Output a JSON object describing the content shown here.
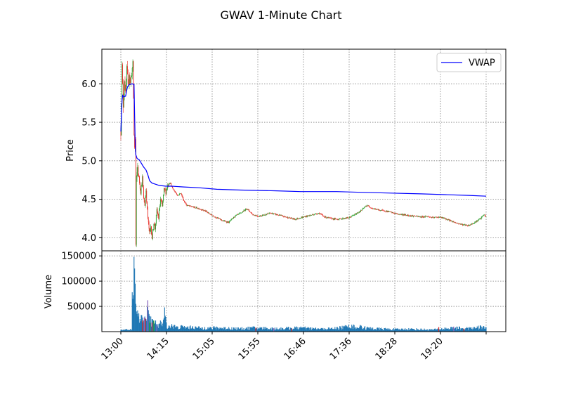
{
  "chart_data": {
    "title": "GWAV 1-Minute Chart",
    "type": "candlestick-with-volume",
    "grid": true,
    "legend_placement": "upper-right",
    "x_tick_labels": [
      "13:00",
      "14:15",
      "15:05",
      "15:55",
      "16:46",
      "17:36",
      "18:28",
      "19:20"
    ],
    "price_panel": {
      "ylabel": "Price",
      "ylim": [
        3.83,
        6.45
      ],
      "yticks": [
        4.0,
        4.5,
        5.0,
        5.5,
        6.0
      ],
      "ytick_labels": [
        "4.0",
        "4.5",
        "5.0",
        "5.5",
        "6.0"
      ],
      "vwap": {
        "name": "VWAP",
        "color": "#0000ff",
        "points": [
          [
            0,
            5.38
          ],
          [
            2,
            5.78
          ],
          [
            3,
            5.85
          ],
          [
            5,
            5.83
          ],
          [
            8,
            5.84
          ],
          [
            11,
            5.96
          ],
          [
            14,
            5.99
          ],
          [
            19,
            6.0
          ],
          [
            22,
            5.99
          ],
          [
            23,
            5.6
          ],
          [
            24,
            5.2
          ],
          [
            25,
            5.08
          ],
          [
            27,
            5.03
          ],
          [
            31,
            5.01
          ],
          [
            34,
            4.97
          ],
          [
            38,
            4.92
          ],
          [
            42,
            4.88
          ],
          [
            45,
            4.82
          ],
          [
            48,
            4.74
          ],
          [
            52,
            4.71
          ],
          [
            56,
            4.7
          ],
          [
            64,
            4.68
          ],
          [
            75,
            4.67
          ],
          [
            85,
            4.67
          ],
          [
            105,
            4.66
          ],
          [
            130,
            4.65
          ],
          [
            160,
            4.63
          ],
          [
            200,
            4.62
          ],
          [
            260,
            4.61
          ],
          [
            300,
            4.6
          ],
          [
            360,
            4.6
          ],
          [
            400,
            4.59
          ],
          [
            450,
            4.58
          ],
          [
            500,
            4.57
          ],
          [
            540,
            4.56
          ],
          [
            580,
            4.55
          ],
          [
            609,
            4.54
          ]
        ]
      },
      "price_path": [
        [
          0,
          5.38
        ],
        [
          2,
          6.22
        ],
        [
          4,
          5.72
        ],
        [
          6,
          6.06
        ],
        [
          8,
          5.85
        ],
        [
          10,
          6.18
        ],
        [
          12,
          5.96
        ],
        [
          14,
          6.14
        ],
        [
          16,
          6.0
        ],
        [
          18,
          6.15
        ],
        [
          20,
          6.24
        ],
        [
          21,
          5.82
        ],
        [
          22,
          5.33
        ],
        [
          23,
          5.18
        ],
        [
          24,
          5.27
        ],
        [
          25,
          3.9
        ],
        [
          26,
          4.75
        ],
        [
          28,
          4.92
        ],
        [
          30,
          4.78
        ],
        [
          33,
          4.6
        ],
        [
          36,
          4.78
        ],
        [
          38,
          4.5
        ],
        [
          40,
          4.43
        ],
        [
          42,
          4.62
        ],
        [
          45,
          4.25
        ],
        [
          48,
          4.05
        ],
        [
          50,
          4.15
        ],
        [
          52,
          4.0
        ],
        [
          55,
          4.2
        ],
        [
          57,
          4.12
        ],
        [
          60,
          4.35
        ],
        [
          63,
          4.25
        ],
        [
          66,
          4.5
        ],
        [
          69,
          4.4
        ],
        [
          72,
          4.62
        ],
        [
          75,
          4.6
        ],
        [
          78,
          4.68
        ],
        [
          82,
          4.72
        ],
        [
          86,
          4.64
        ],
        [
          90,
          4.6
        ],
        [
          95,
          4.55
        ],
        [
          100,
          4.58
        ],
        [
          105,
          4.48
        ],
        [
          110,
          4.42
        ],
        [
          120,
          4.4
        ],
        [
          130,
          4.38
        ],
        [
          140,
          4.35
        ],
        [
          150,
          4.3
        ],
        [
          160,
          4.26
        ],
        [
          170,
          4.22
        ],
        [
          180,
          4.2
        ],
        [
          190,
          4.28
        ],
        [
          200,
          4.32
        ],
        [
          210,
          4.38
        ],
        [
          220,
          4.3
        ],
        [
          230,
          4.28
        ],
        [
          240,
          4.3
        ],
        [
          250,
          4.32
        ],
        [
          260,
          4.3
        ],
        [
          270,
          4.28
        ],
        [
          280,
          4.26
        ],
        [
          290,
          4.24
        ],
        [
          300,
          4.26
        ],
        [
          310,
          4.28
        ],
        [
          320,
          4.3
        ],
        [
          330,
          4.32
        ],
        [
          340,
          4.27
        ],
        [
          350,
          4.25
        ],
        [
          360,
          4.24
        ],
        [
          370,
          4.25
        ],
        [
          380,
          4.26
        ],
        [
          390,
          4.3
        ],
        [
          400,
          4.35
        ],
        [
          410,
          4.42
        ],
        [
          420,
          4.38
        ],
        [
          430,
          4.36
        ],
        [
          440,
          4.35
        ],
        [
          450,
          4.33
        ],
        [
          460,
          4.31
        ],
        [
          470,
          4.3
        ],
        [
          480,
          4.29
        ],
        [
          490,
          4.28
        ],
        [
          500,
          4.27
        ],
        [
          510,
          4.28
        ],
        [
          520,
          4.26
        ],
        [
          530,
          4.27
        ],
        [
          540,
          4.25
        ],
        [
          550,
          4.22
        ],
        [
          560,
          4.19
        ],
        [
          570,
          4.17
        ],
        [
          580,
          4.16
        ],
        [
          590,
          4.2
        ],
        [
          600,
          4.25
        ],
        [
          605,
          4.3
        ],
        [
          609,
          4.27
        ]
      ]
    },
    "volume_panel": {
      "ylabel": "Volume",
      "ylim": [
        0,
        160000
      ],
      "yticks": [
        50000,
        100000,
        150000
      ],
      "ytick_labels": [
        "50000",
        "100000",
        "150000"
      ],
      "bar_color": "#1f77b4",
      "peaks": [
        [
          19,
          78000
        ],
        [
          20,
          65000
        ],
        [
          21,
          72000
        ],
        [
          22,
          148000
        ],
        [
          23,
          125000
        ],
        [
          24,
          95000
        ],
        [
          25,
          55000
        ],
        [
          26,
          40000
        ],
        [
          27,
          35000
        ],
        [
          28,
          42000
        ],
        [
          29,
          30000
        ],
        [
          30,
          36000
        ],
        [
          32,
          25000
        ],
        [
          34,
          33000
        ],
        [
          36,
          28000
        ],
        [
          38,
          22000
        ],
        [
          40,
          30000
        ],
        [
          42,
          25000
        ],
        [
          45,
          62000
        ],
        [
          47,
          35000
        ],
        [
          50,
          30000
        ],
        [
          52,
          25000
        ],
        [
          55,
          18000
        ],
        [
          58,
          22000
        ],
        [
          62,
          15000
        ],
        [
          66,
          22000
        ],
        [
          70,
          16000
        ],
        [
          73,
          48000
        ],
        [
          76,
          18000
        ],
        [
          80,
          12000
        ],
        [
          85,
          15000
        ],
        [
          90,
          13000
        ],
        [
          95,
          10000
        ],
        [
          100,
          12000
        ],
        [
          120,
          11000
        ],
        [
          140,
          9000
        ],
        [
          160,
          10000
        ],
        [
          180,
          9000
        ],
        [
          200,
          8000
        ],
        [
          220,
          10000
        ],
        [
          240,
          9000
        ],
        [
          260,
          8000
        ],
        [
          280,
          9000
        ],
        [
          300,
          10000
        ],
        [
          320,
          8000
        ],
        [
          340,
          7000
        ],
        [
          360,
          9000
        ],
        [
          380,
          14000
        ],
        [
          400,
          12000
        ],
        [
          420,
          8000
        ],
        [
          440,
          7000
        ],
        [
          460,
          6000
        ],
        [
          480,
          7000
        ],
        [
          500,
          6000
        ],
        [
          520,
          5000
        ],
        [
          540,
          8000
        ],
        [
          560,
          10000
        ],
        [
          580,
          8000
        ],
        [
          600,
          12000
        ],
        [
          609,
          9000
        ]
      ],
      "colored_spikes": [
        [
          36,
          22000,
          "#d62728"
        ],
        [
          39,
          28000,
          "#9467bd"
        ],
        [
          41,
          26000,
          "#d62728"
        ],
        [
          45,
          62000,
          "#9467bd"
        ],
        [
          48,
          20000,
          "#2ca02c"
        ],
        [
          52,
          18000,
          "#d62728"
        ],
        [
          55,
          22000,
          "#2ca02c"
        ],
        [
          60,
          14000,
          "#9467bd"
        ],
        [
          225,
          8000,
          "#d62728"
        ],
        [
          255,
          7000,
          "#9467bd"
        ],
        [
          285,
          6000,
          "#d62728"
        ],
        [
          530,
          9000,
          "#d62728"
        ],
        [
          555,
          10000,
          "#9467bd"
        ],
        [
          572,
          6000,
          "#d62728"
        ]
      ]
    }
  }
}
